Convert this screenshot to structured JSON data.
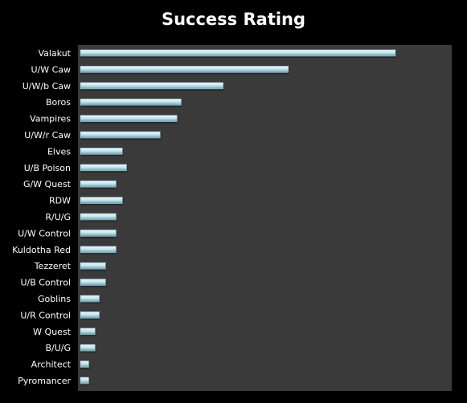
{
  "chart_data": {
    "type": "bar",
    "orientation": "horizontal",
    "title": "Success Rating",
    "xlabel": "",
    "ylabel": "",
    "xlim": [
      0,
      15
    ],
    "grid": false,
    "legend": "none",
    "colors": {
      "background": "#000000",
      "plot_area": "#3a3a3a",
      "bar": "#b7dde8",
      "bar_highlight": "#eef8fb",
      "bar_shadow": "#6f9aa7"
    },
    "categories": [
      "Valakut",
      "U/W Caw",
      "U/W/b Caw",
      "Boros",
      "Vampires",
      "U/W/r Caw",
      "Elves",
      "U/B Poison",
      "G/W Quest",
      "RDW",
      "R/U/G",
      "U/W Control",
      "Kuldotha Red",
      "Tezzeret",
      "U/B Control",
      "Goblins",
      "U/R Control",
      "W Quest",
      "B/U/G",
      "Architect",
      "Pyromancer"
    ],
    "values": [
      15,
      9.9,
      6.8,
      4.8,
      4.6,
      3.8,
      2.0,
      2.2,
      1.7,
      2.0,
      1.7,
      1.7,
      1.7,
      1.2,
      1.2,
      0.9,
      0.9,
      0.7,
      0.7,
      0.4,
      0.4
    ]
  }
}
